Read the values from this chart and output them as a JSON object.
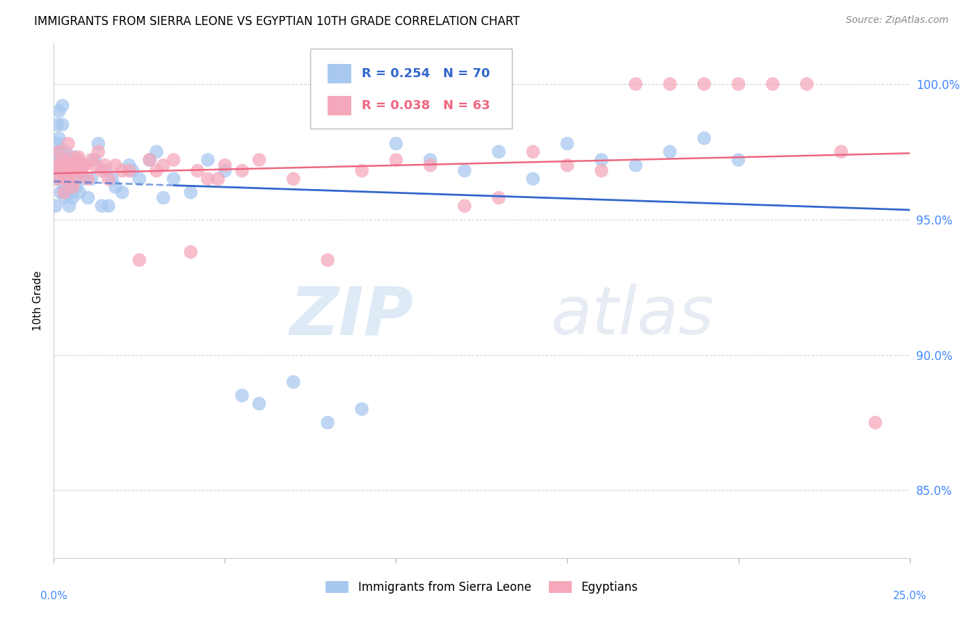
{
  "title": "IMMIGRANTS FROM SIERRA LEONE VS EGYPTIAN 10TH GRADE CORRELATION CHART",
  "source": "Source: ZipAtlas.com",
  "ylabel": "10th Grade",
  "ylabel_ticks": [
    85.0,
    90.0,
    95.0,
    100.0
  ],
  "ylabel_tick_labels": [
    "85.0%",
    "90.0%",
    "95.0%",
    "100.0%"
  ],
  "xlim": [
    0.0,
    25.0
  ],
  "ylim": [
    82.5,
    101.5
  ],
  "legend_blue_r": "R = 0.254",
  "legend_blue_n": "N = 70",
  "legend_pink_r": "R = 0.038",
  "legend_pink_n": "N = 63",
  "legend_blue_label": "Immigrants from Sierra Leone",
  "legend_pink_label": "Egyptians",
  "blue_color": "#A8C8F0",
  "pink_color": "#F5A8BC",
  "blue_line_color": "#3366CC",
  "pink_line_color": "#EE6680",
  "blue_x": [
    0.05,
    0.05,
    0.1,
    0.1,
    0.12,
    0.15,
    0.15,
    0.18,
    0.2,
    0.2,
    0.22,
    0.25,
    0.25,
    0.28,
    0.3,
    0.3,
    0.32,
    0.35,
    0.35,
    0.38,
    0.4,
    0.4,
    0.45,
    0.45,
    0.5,
    0.5,
    0.55,
    0.6,
    0.6,
    0.65,
    0.7,
    0.75,
    0.8,
    0.9,
    1.0,
    1.1,
    1.2,
    1.3,
    1.4,
    1.5,
    1.6,
    1.7,
    1.8,
    2.0,
    2.2,
    2.3,
    2.5,
    2.8,
    3.0,
    3.2,
    3.5,
    4.0,
    4.5,
    5.0,
    5.5,
    6.0,
    7.0,
    8.0,
    9.0,
    10.0,
    11.0,
    12.0,
    13.0,
    14.0,
    15.0,
    16.0,
    17.0,
    18.0,
    19.0,
    20.0
  ],
  "blue_y": [
    96.5,
    95.5,
    98.5,
    97.2,
    97.8,
    99.0,
    98.0,
    97.5,
    97.0,
    96.0,
    97.3,
    99.2,
    98.5,
    96.8,
    96.2,
    97.0,
    95.8,
    96.5,
    97.5,
    96.0,
    96.8,
    97.2,
    95.5,
    96.3,
    96.0,
    97.0,
    95.8,
    96.5,
    97.3,
    96.2,
    96.8,
    96.0,
    97.0,
    96.5,
    95.8,
    96.5,
    97.2,
    97.8,
    95.5,
    96.8,
    95.5,
    96.5,
    96.2,
    96.0,
    97.0,
    96.8,
    96.5,
    97.2,
    97.5,
    95.8,
    96.5,
    96.0,
    97.2,
    96.8,
    88.5,
    88.2,
    89.0,
    87.5,
    88.0,
    97.8,
    97.2,
    96.8,
    97.5,
    96.5,
    97.8,
    97.2,
    97.0,
    97.5,
    98.0,
    97.2
  ],
  "pink_x": [
    0.05,
    0.1,
    0.15,
    0.2,
    0.25,
    0.3,
    0.35,
    0.4,
    0.45,
    0.5,
    0.55,
    0.6,
    0.65,
    0.7,
    0.8,
    0.9,
    1.0,
    1.1,
    1.2,
    1.4,
    1.6,
    1.8,
    2.0,
    2.5,
    3.0,
    3.5,
    4.0,
    4.5,
    5.0,
    6.0,
    7.0,
    8.0,
    9.0,
    10.0,
    11.0,
    12.0,
    13.0,
    14.0,
    15.0,
    16.0,
    17.0,
    18.0,
    19.0,
    20.0,
    21.0,
    22.0,
    23.0,
    24.0,
    0.22,
    0.32,
    0.42,
    0.52,
    0.62,
    0.72,
    0.85,
    1.3,
    1.5,
    2.2,
    2.8,
    3.2,
    4.2,
    4.8,
    5.5
  ],
  "pink_y": [
    97.0,
    96.5,
    97.5,
    96.8,
    97.2,
    96.0,
    97.0,
    96.5,
    96.8,
    97.3,
    96.2,
    97.0,
    96.5,
    97.2,
    96.8,
    97.0,
    96.5,
    97.2,
    97.0,
    96.8,
    96.5,
    97.0,
    96.8,
    93.5,
    96.8,
    97.2,
    93.8,
    96.5,
    97.0,
    97.2,
    96.5,
    93.5,
    96.8,
    97.2,
    97.0,
    95.5,
    95.8,
    97.5,
    97.0,
    96.8,
    100.0,
    100.0,
    100.0,
    100.0,
    100.0,
    100.0,
    97.5,
    87.5,
    97.0,
    96.5,
    97.8,
    97.0,
    96.8,
    97.3,
    97.0,
    97.5,
    97.0,
    96.8,
    97.2,
    97.0,
    96.8,
    96.5,
    96.8
  ],
  "watermark_zip": "ZIP",
  "watermark_atlas": "atlas",
  "background_color": "#FFFFFF",
  "grid_color": "#CCCCCC",
  "blue_dashed_end_x": 3.5,
  "blue_solid_start_x": 3.5
}
